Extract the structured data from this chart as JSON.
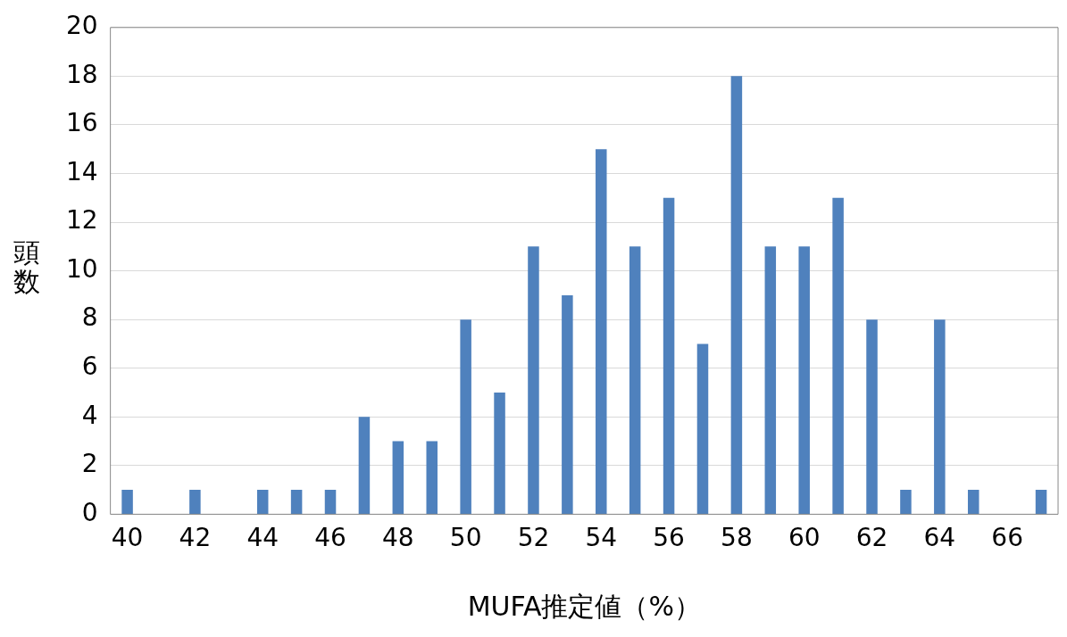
{
  "chart_data": {
    "type": "bar",
    "xlabel": "MUFA推定値（%）",
    "ylabel": "頭数",
    "categories": [
      "40",
      null,
      "42",
      null,
      "44",
      null,
      "46",
      null,
      "48",
      null,
      "50",
      null,
      "52",
      null,
      "54",
      null,
      "56",
      null,
      "58",
      null,
      "60",
      null,
      "62",
      null,
      "64",
      null,
      "66",
      null
    ],
    "values": [
      1,
      0,
      1,
      0,
      1,
      1,
      1,
      4,
      3,
      3,
      8,
      5,
      11,
      9,
      15,
      11,
      13,
      7,
      18,
      11,
      11,
      13,
      8,
      1,
      8,
      1,
      0,
      1
    ],
    "color": "#4f81bd",
    "ylim": [
      0,
      20
    ],
    "yticks": [
      0,
      2,
      4,
      6,
      8,
      10,
      12,
      14,
      16,
      18,
      20
    ],
    "grid": "y",
    "legend": false
  }
}
